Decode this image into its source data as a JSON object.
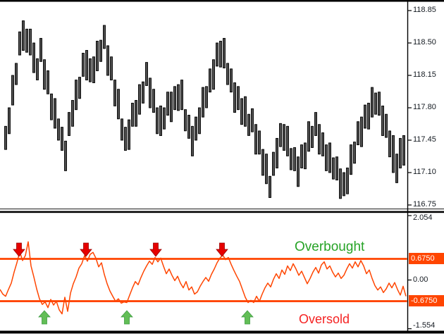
{
  "price_axis": {
    "labels": [
      "118.85",
      "118.50",
      "118.15",
      "117.80",
      "117.45",
      "117.10",
      "116.75"
    ]
  },
  "indicator_axis": {
    "plain_labels": [
      {
        "text": "2.054",
        "value": 2.054
      },
      {
        "text": "0.00",
        "value": 0.0
      },
      {
        "text": "-1.554",
        "value": -1.554
      }
    ],
    "upper_box_label": "0.6750",
    "lower_box_label": "-0.6750"
  },
  "annotations": {
    "overbought": "Overbought",
    "oversold": "Oversold"
  },
  "colors": {
    "indicator": "#FF4500",
    "level_line": "#FF4500",
    "axis_box_bg": "#FF4500",
    "axis_box_text": "#FFFFFF",
    "overbought_text": "#27A327",
    "oversold_text": "#F52222",
    "bar_fill": "#4d4d4d",
    "bar_stroke": "#000000",
    "sell_arrow": "#E60000",
    "sell_arrow_edge": "#990000",
    "buy_arrow": "#62BE56",
    "buy_arrow_edge": "#3F9C43",
    "axis_text": "#141a21",
    "frame": "#000000"
  },
  "chart_data": [
    {
      "type": "ohlc_bars",
      "title": "",
      "xlabel": "",
      "ylabel": "",
      "ylim": [
        116.71,
        118.95
      ],
      "price_ticks": [
        118.85,
        118.5,
        118.15,
        117.8,
        117.45,
        117.1,
        116.75
      ],
      "x_start": 8,
      "x_step": 5,
      "bars": [
        [
          117.6,
          117.35
        ],
        [
          117.8,
          117.52
        ],
        [
          118.15,
          117.83
        ],
        [
          118.28,
          118.05
        ],
        [
          118.62,
          118.37
        ],
        [
          118.74,
          118.42
        ],
        [
          118.65,
          118.4
        ],
        [
          118.65,
          118.37
        ],
        [
          118.5,
          118.18
        ],
        [
          118.33,
          118.1
        ],
        [
          118.55,
          118.3
        ],
        [
          118.32,
          118.0
        ],
        [
          118.2,
          117.95
        ],
        [
          117.95,
          117.67
        ],
        [
          117.9,
          117.58
        ],
        [
          117.68,
          117.45
        ],
        [
          117.59,
          117.34
        ],
        [
          117.44,
          117.12
        ],
        [
          117.75,
          117.5
        ],
        [
          117.88,
          117.6
        ],
        [
          118.1,
          117.78
        ],
        [
          118.13,
          117.9
        ],
        [
          118.39,
          118.14
        ],
        [
          118.42,
          118.1
        ],
        [
          118.33,
          118.08
        ],
        [
          118.35,
          118.07
        ],
        [
          118.52,
          118.2
        ],
        [
          118.53,
          118.3
        ],
        [
          118.69,
          118.44
        ],
        [
          118.47,
          118.15
        ],
        [
          118.35,
          118.1
        ],
        [
          118.1,
          117.82
        ],
        [
          118.0,
          117.68
        ],
        [
          117.68,
          117.45
        ],
        [
          117.59,
          117.34
        ],
        [
          117.67,
          117.35
        ],
        [
          117.85,
          117.6
        ],
        [
          117.88,
          117.6
        ],
        [
          118.05,
          117.73
        ],
        [
          118.08,
          117.85
        ],
        [
          118.29,
          118.04
        ],
        [
          118.12,
          117.8
        ],
        [
          118.0,
          117.75
        ],
        [
          117.8,
          117.52
        ],
        [
          117.82,
          117.5
        ],
        [
          117.8,
          117.57
        ],
        [
          117.97,
          117.72
        ],
        [
          117.97,
          117.65
        ],
        [
          118.03,
          117.78
        ],
        [
          118.05,
          117.77
        ],
        [
          118.1,
          117.78
        ],
        [
          117.78,
          117.55
        ],
        [
          117.72,
          117.47
        ],
        [
          117.6,
          117.28
        ],
        [
          117.7,
          117.45
        ],
        [
          117.8,
          117.52
        ],
        [
          118.02,
          117.7
        ],
        [
          118.03,
          117.8
        ],
        [
          118.22,
          117.97
        ],
        [
          118.32,
          118.0
        ],
        [
          118.5,
          118.25
        ],
        [
          118.52,
          118.24
        ],
        [
          118.55,
          118.23
        ],
        [
          118.28,
          118.05
        ],
        [
          118.22,
          117.97
        ],
        [
          118.07,
          117.75
        ],
        [
          118.03,
          117.78
        ],
        [
          117.9,
          117.62
        ],
        [
          117.92,
          117.6
        ],
        [
          117.73,
          117.5
        ],
        [
          117.79,
          117.54
        ],
        [
          117.62,
          117.3
        ],
        [
          117.55,
          117.3
        ],
        [
          117.35,
          117.07
        ],
        [
          117.3,
          116.98
        ],
        [
          117.06,
          116.83
        ],
        [
          117.32,
          117.07
        ],
        [
          117.47,
          117.15
        ],
        [
          117.63,
          117.38
        ],
        [
          117.62,
          117.34
        ],
        [
          117.6,
          117.28
        ],
        [
          117.36,
          117.13
        ],
        [
          117.37,
          117.12
        ],
        [
          117.27,
          116.95
        ],
        [
          117.4,
          117.15
        ],
        [
          117.42,
          117.14
        ],
        [
          117.65,
          117.33
        ],
        [
          117.6,
          117.37
        ],
        [
          117.75,
          117.5
        ],
        [
          117.62,
          117.3
        ],
        [
          117.53,
          117.28
        ],
        [
          117.4,
          117.12
        ],
        [
          117.42,
          117.1
        ],
        [
          117.26,
          117.03
        ],
        [
          117.27,
          117.02
        ],
        [
          117.14,
          116.82
        ],
        [
          117.1,
          116.85
        ],
        [
          117.15,
          116.87
        ],
        [
          117.4,
          117.08
        ],
        [
          117.43,
          117.2
        ],
        [
          117.65,
          117.4
        ],
        [
          117.7,
          117.38
        ],
        [
          117.83,
          117.58
        ],
        [
          117.85,
          117.57
        ],
        [
          118.02,
          117.7
        ],
        [
          117.96,
          117.73
        ],
        [
          117.97,
          117.72
        ],
        [
          117.82,
          117.5
        ],
        [
          117.73,
          117.48
        ],
        [
          117.55,
          117.27
        ],
        [
          117.5,
          117.1
        ],
        [
          117.3,
          116.99
        ],
        [
          117.47,
          117.15
        ],
        [
          117.5,
          117.18
        ]
      ]
    },
    {
      "type": "line",
      "name": "oscillator",
      "title": "",
      "ylim": [
        -1.554,
        2.054
      ],
      "levels": {
        "overbought": 0.675,
        "oversold": -0.675
      },
      "x_start": 0,
      "x_step": 4,
      "values": [
        -0.3,
        -0.45,
        -0.52,
        -0.3,
        -0.1,
        0.25,
        0.55,
        0.9,
        0.62,
        0.78,
        1.22,
        0.45,
        0.1,
        -0.28,
        -0.6,
        -0.78,
        -0.7,
        -0.88,
        -0.62,
        -0.8,
        -0.68,
        -0.95,
        -1.08,
        -0.55,
        -1.0,
        -0.42,
        -0.12,
        0.1,
        0.38,
        0.52,
        0.78,
        0.6,
        0.82,
        0.88,
        0.7,
        0.42,
        0.55,
        0.18,
        -0.12,
        -0.35,
        -0.52,
        -0.68,
        -0.6,
        -0.74,
        -0.7,
        -0.72,
        -0.48,
        -0.25,
        -0.05,
        -0.15,
        0.08,
        0.28,
        0.45,
        0.6,
        0.5,
        0.72,
        0.58,
        0.7,
        0.44,
        0.2,
        0.35,
        0.15,
        -0.02,
        0.12,
        -0.1,
        -0.25,
        -0.05,
        -0.32,
        -0.22,
        -0.45,
        -0.38,
        -0.2,
        -0.05,
        0.08,
        -0.04,
        0.18,
        0.35,
        0.55,
        0.7,
        0.8,
        0.65,
        0.72,
        0.5,
        0.3,
        0.12,
        -0.05,
        -0.3,
        -0.55,
        -0.72,
        -0.65,
        -0.72,
        -0.52,
        -0.68,
        -0.45,
        -0.25,
        -0.1,
        -0.22,
        0.02,
        0.2,
        0.05,
        0.32,
        0.18,
        0.45,
        0.3,
        0.52,
        0.35,
        0.15,
        0.28,
        0.08,
        -0.12,
        0.05,
        0.25,
        0.4,
        0.22,
        0.48,
        0.58,
        0.35,
        0.45,
        0.25,
        0.1,
        0.22,
        0.05,
        0.15,
        0.35,
        0.52,
        0.38,
        0.58,
        0.42,
        0.62,
        0.45,
        0.2,
        0.32,
        0.05,
        -0.18,
        -0.32,
        -0.22,
        -0.4,
        -0.28,
        -0.1,
        -0.25,
        -0.08,
        -0.3,
        -0.48,
        -0.2,
        -0.52
      ],
      "signals": {
        "sell_arrows_x": [
          27,
          122,
          221,
          315
        ],
        "buy_arrows_x": [
          63,
          180,
          351
        ]
      }
    }
  ]
}
